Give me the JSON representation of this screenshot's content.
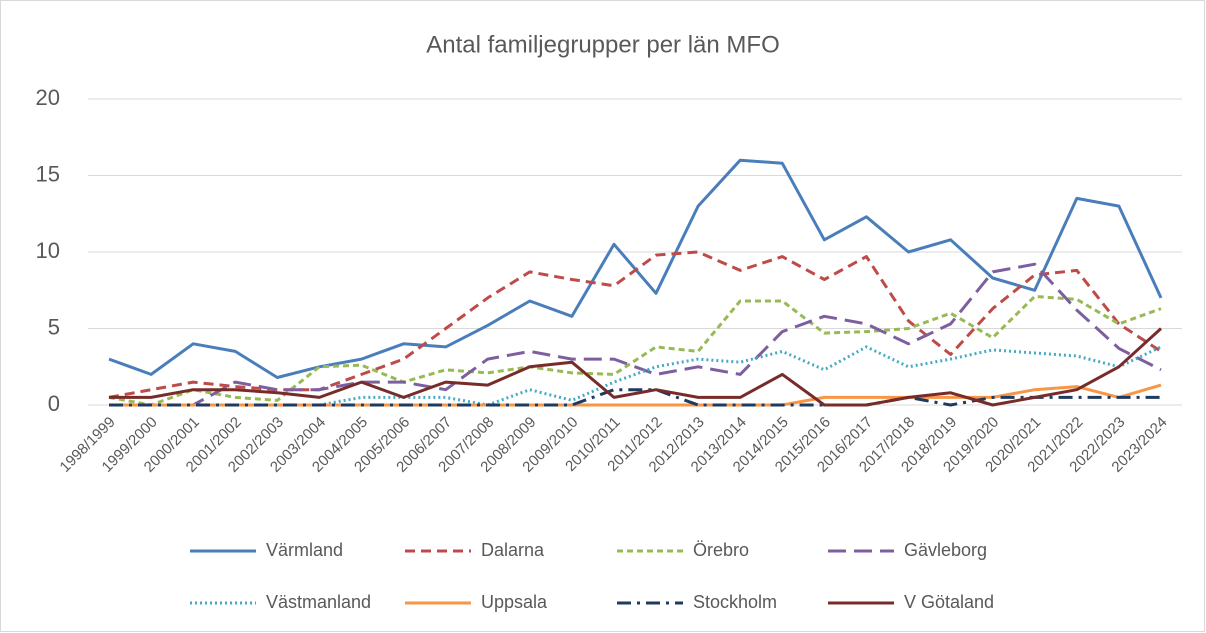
{
  "chart_data": {
    "type": "line",
    "title": "Antal familjegrupper per län MFO",
    "categories": [
      "1998/1999",
      "1999/2000",
      "2000/2001",
      "2001/2002",
      "2002/2003",
      "2003/2004",
      "2004/2005",
      "2005/2006",
      "2006/2007",
      "2007/2008",
      "2008/2009",
      "2009/2010",
      "2010/2011",
      "2011/2012",
      "2012/2013",
      "2013/2014",
      "2014/2015",
      "2015/2016",
      "2016/2017",
      "2017/2018",
      "2018/2019",
      "2019/2020",
      "2020/2021",
      "2021/2022",
      "2022/2023",
      "2023/2024"
    ],
    "series": [
      {
        "name": "Värmland",
        "color": "#4a7ebb",
        "dash": "solid",
        "values": [
          3,
          2,
          4,
          3.5,
          1.8,
          2.5,
          3,
          4,
          3.8,
          5.2,
          6.8,
          5.8,
          10.5,
          7.3,
          13,
          16,
          15.8,
          10.8,
          12.3,
          10,
          10.8,
          8.3,
          7.5,
          13.5,
          13,
          7
        ]
      },
      {
        "name": "Dalarna",
        "color": "#be4b48",
        "dash": "dash",
        "values": [
          0.5,
          1,
          1.5,
          1.2,
          1,
          1,
          2,
          3,
          5,
          7,
          8.7,
          8.2,
          7.8,
          9.8,
          10,
          8.8,
          9.7,
          8.2,
          9.7,
          5.5,
          3.3,
          6.3,
          8.5,
          8.8,
          5.3,
          3.5
        ]
      },
      {
        "name": "Örebro",
        "color": "#98b954",
        "dash": "shortdash",
        "values": [
          0.5,
          0,
          1,
          0.5,
          0.3,
          2.5,
          2.6,
          1.5,
          2.3,
          2.1,
          2.5,
          2.1,
          2,
          3.8,
          3.5,
          6.8,
          6.8,
          4.7,
          4.8,
          5,
          6,
          4.4,
          7.1,
          6.9,
          5.3,
          6.3
        ]
      },
      {
        "name": "Gävleborg",
        "color": "#7d5fa0",
        "dash": "longdash",
        "values": [
          0,
          0,
          0,
          1.5,
          1,
          1,
          1.5,
          1.5,
          1,
          3,
          3.5,
          3,
          3,
          2,
          2.5,
          2,
          4.8,
          5.8,
          5.3,
          4,
          5.3,
          8.7,
          9.2,
          6.2,
          3.7,
          2.3
        ]
      },
      {
        "name": "Västmanland",
        "color": "#46aac5",
        "dash": "dot",
        "values": [
          0,
          0,
          0,
          0,
          0,
          0,
          0.5,
          0.5,
          0.5,
          0,
          1,
          0.3,
          1.5,
          2.5,
          3,
          2.8,
          3.5,
          2.3,
          3.8,
          2.5,
          3,
          3.6,
          3.4,
          3.2,
          2.5,
          3.8
        ]
      },
      {
        "name": "Uppsala",
        "color": "#f79646",
        "dash": "solid",
        "values": [
          0,
          0,
          0,
          0,
          0,
          0,
          0,
          0,
          0,
          0,
          0,
          0,
          0,
          0,
          0,
          0,
          0,
          0.5,
          0.5,
          0.5,
          0.5,
          0.5,
          1,
          1.2,
          0.5,
          1.3
        ]
      },
      {
        "name": "Stockholm",
        "color": "#1f3a60",
        "dash": "dashdot",
        "values": [
          0,
          0,
          0,
          0,
          0,
          0,
          0,
          0,
          0,
          0,
          0,
          0,
          1,
          1,
          0,
          0,
          0,
          0,
          0,
          0.5,
          0,
          0.5,
          0.5,
          0.5,
          0.5,
          0.5
        ]
      },
      {
        "name": "V Götaland",
        "color": "#772c2a",
        "dash": "solid",
        "values": [
          0.5,
          0.5,
          1,
          1,
          0.8,
          0.5,
          1.5,
          0.5,
          1.5,
          1.3,
          2.5,
          2.8,
          0.5,
          1,
          0.5,
          0.5,
          2,
          0,
          0,
          0.5,
          0.8,
          0,
          0.5,
          1,
          2.5,
          5
        ]
      }
    ],
    "ylim": [
      0,
      20
    ],
    "yticks": [
      0,
      5,
      10,
      15,
      20
    ],
    "grid": true,
    "legend": "bottom"
  }
}
